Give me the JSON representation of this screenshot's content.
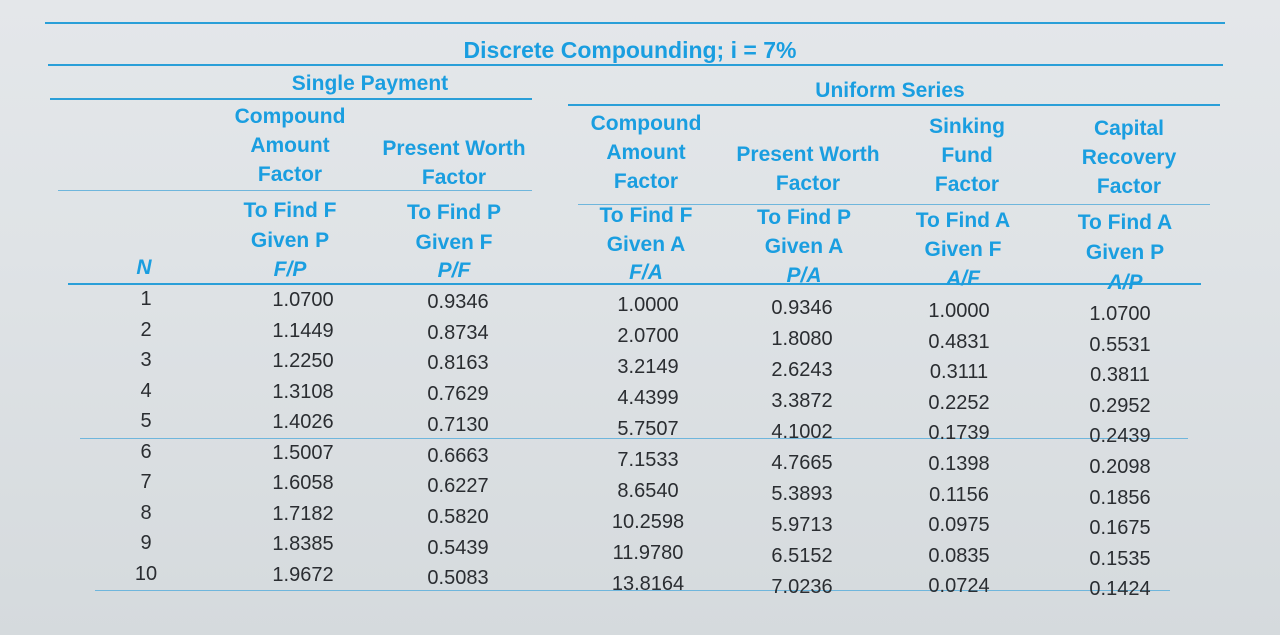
{
  "title": "Discrete Compounding; i = 7%",
  "groups": {
    "single_payment": "Single Payment",
    "uniform_series": "Uniform Series"
  },
  "factor_names": [
    "Compound Amount Factor",
    "Present Worth Factor",
    "Compound Amount Factor",
    "Present Worth Factor",
    "Sinking Fund Factor",
    "Capital Recovery Factor"
  ],
  "find_given": [
    {
      "find": "To Find F",
      "given": "Given P",
      "notation": "F/P"
    },
    {
      "find": "To Find P",
      "given": "Given F",
      "notation": "P/F"
    },
    {
      "find": "To Find F",
      "given": "Given A",
      "notation": "F/A"
    },
    {
      "find": "To Find P",
      "given": "Given A",
      "notation": "P/A"
    },
    {
      "find": "To Find A",
      "given": "Given F",
      "notation": "A/F"
    },
    {
      "find": "To Find A",
      "given": "Given P",
      "notation": "A/P"
    }
  ],
  "n_header": "N",
  "rows": [
    {
      "n": "1",
      "fp": "1.0700",
      "pf": "0.9346",
      "fa": "1.0000",
      "pa": "0.9346",
      "af": "1.0000",
      "ap": "1.0700"
    },
    {
      "n": "2",
      "fp": "1.1449",
      "pf": "0.8734",
      "fa": "2.0700",
      "pa": "1.8080",
      "af": "0.4831",
      "ap": "0.5531"
    },
    {
      "n": "3",
      "fp": "1.2250",
      "pf": "0.8163",
      "fa": "3.2149",
      "pa": "2.6243",
      "af": "0.3111",
      "ap": "0.3811"
    },
    {
      "n": "4",
      "fp": "1.3108",
      "pf": "0.7629",
      "fa": "4.4399",
      "pa": "3.3872",
      "af": "0.2252",
      "ap": "0.2952"
    },
    {
      "n": "5",
      "fp": "1.4026",
      "pf": "0.7130",
      "fa": "5.7507",
      "pa": "4.1002",
      "af": "0.1739",
      "ap": "0.2439"
    },
    {
      "n": "6",
      "fp": "1.5007",
      "pf": "0.6663",
      "fa": "7.1533",
      "pa": "4.7665",
      "af": "0.1398",
      "ap": "0.2098"
    },
    {
      "n": "7",
      "fp": "1.6058",
      "pf": "0.6227",
      "fa": "8.6540",
      "pa": "5.3893",
      "af": "0.1156",
      "ap": "0.1856"
    },
    {
      "n": "8",
      "fp": "1.7182",
      "pf": "0.5820",
      "fa": "10.2598",
      "pa": "5.9713",
      "af": "0.0975",
      "ap": "0.1675"
    },
    {
      "n": "9",
      "fp": "1.8385",
      "pf": "0.5439",
      "fa": "11.9780",
      "pa": "6.5152",
      "af": "0.0835",
      "ap": "0.1535"
    },
    {
      "n": "10",
      "fp": "1.9672",
      "pf": "0.5083",
      "fa": "13.8164",
      "pa": "7.0236",
      "af": "0.0724",
      "ap": "0.1424"
    }
  ],
  "colors": {
    "header_blue": "#1a9ee0",
    "rule_blue": "#2a9fd8",
    "value_text": "#2a2d31"
  }
}
